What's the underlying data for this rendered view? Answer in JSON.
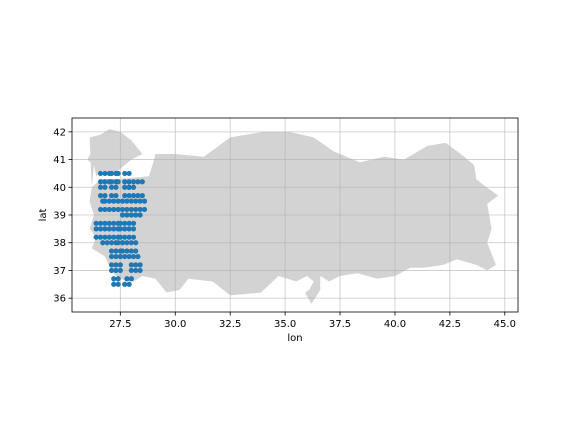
{
  "chart_data": {
    "type": "scatter",
    "title": "",
    "xlabel": "lon",
    "ylabel": "lat",
    "xlim": [
      25.3,
      45.6
    ],
    "ylim": [
      35.5,
      42.5
    ],
    "xticks": [
      27.5,
      30.0,
      32.5,
      35.0,
      37.5,
      40.0,
      42.5,
      45.0
    ],
    "xtick_labels": [
      "27.5",
      "30.0",
      "32.5",
      "35.0",
      "37.5",
      "40.0",
      "42.5",
      "45.0"
    ],
    "yticks": [
      36,
      37,
      38,
      39,
      40,
      41,
      42
    ],
    "ytick_labels": [
      "36",
      "37",
      "38",
      "39",
      "40",
      "41",
      "42"
    ],
    "grid": true,
    "background_shape": "Turkey outline (land polygon)",
    "colors": {
      "land": "#d3d3d3",
      "points": "#1f77b4",
      "grid": "#b0b0b0",
      "frame": "#000000"
    },
    "land_outline": [
      [
        26.1,
        41.8
      ],
      [
        26.6,
        41.9
      ],
      [
        27.0,
        42.1
      ],
      [
        27.5,
        42.0
      ],
      [
        28.0,
        41.7
      ],
      [
        28.5,
        41.2
      ],
      [
        28.0,
        41.0
      ],
      [
        27.4,
        40.6
      ],
      [
        27.0,
        40.4
      ],
      [
        26.7,
        40.6
      ],
      [
        26.4,
        40.4
      ],
      [
        26.3,
        40.8
      ],
      [
        26.0,
        41.0
      ],
      [
        26.4,
        41.6
      ],
      [
        26.2,
        40.0
      ],
      [
        26.1,
        39.5
      ],
      [
        26.3,
        39.0
      ],
      [
        26.1,
        38.5
      ],
      [
        26.4,
        38.2
      ],
      [
        26.2,
        37.8
      ],
      [
        26.8,
        37.5
      ],
      [
        27.1,
        37.0
      ],
      [
        27.4,
        36.7
      ],
      [
        28.1,
        36.6
      ],
      [
        28.5,
        36.8
      ],
      [
        29.1,
        36.7
      ],
      [
        29.6,
        36.2
      ],
      [
        30.2,
        36.3
      ],
      [
        30.6,
        36.7
      ],
      [
        31.7,
        36.6
      ],
      [
        32.5,
        36.1
      ],
      [
        33.9,
        36.2
      ],
      [
        34.7,
        36.8
      ],
      [
        35.5,
        36.6
      ],
      [
        36.0,
        36.8
      ],
      [
        36.3,
        36.6
      ],
      [
        36.1,
        36.3
      ],
      [
        35.9,
        36.2
      ],
      [
        36.2,
        35.8
      ],
      [
        36.6,
        36.3
      ],
      [
        36.6,
        36.8
      ],
      [
        37.0,
        36.6
      ],
      [
        37.5,
        36.8
      ],
      [
        38.3,
        36.9
      ],
      [
        39.2,
        36.7
      ],
      [
        40.0,
        36.8
      ],
      [
        40.7,
        37.1
      ],
      [
        41.3,
        37.1
      ],
      [
        42.2,
        37.2
      ],
      [
        42.8,
        37.4
      ],
      [
        43.7,
        37.2
      ],
      [
        44.2,
        37.0
      ],
      [
        44.6,
        37.2
      ],
      [
        44.2,
        38.0
      ],
      [
        44.4,
        38.5
      ],
      [
        44.2,
        39.4
      ],
      [
        44.7,
        39.7
      ],
      [
        44.0,
        40.1
      ],
      [
        43.7,
        40.3
      ],
      [
        43.6,
        40.8
      ],
      [
        43.0,
        41.2
      ],
      [
        42.3,
        41.6
      ],
      [
        41.5,
        41.5
      ],
      [
        40.4,
        41.0
      ],
      [
        39.5,
        41.1
      ],
      [
        38.4,
        40.9
      ],
      [
        37.2,
        41.3
      ],
      [
        36.3,
        41.8
      ],
      [
        35.2,
        42.0
      ],
      [
        34.0,
        42.0
      ],
      [
        32.5,
        41.8
      ],
      [
        31.3,
        41.1
      ],
      [
        30.0,
        41.2
      ],
      [
        29.1,
        41.2
      ],
      [
        29.0,
        40.9
      ],
      [
        28.8,
        40.4
      ],
      [
        27.4,
        40.3
      ],
      [
        26.6,
        40.3
      ],
      [
        26.2,
        40.0
      ]
    ],
    "series": [
      {
        "x": [
          26.6,
          26.8,
          26.6,
          26.8,
          26.6,
          26.8,
          26.6,
          26.8,
          27.0,
          27.1,
          27.3,
          27.4,
          27.0,
          27.1,
          27.3,
          27.4,
          27.1,
          27.3,
          27.1,
          27.3,
          26.7,
          26.8,
          27.0,
          27.2,
          27.4,
          26.6,
          26.8,
          27.0,
          27.2,
          27.4,
          26.4,
          26.6,
          26.8,
          27.0,
          27.2,
          27.4,
          26.4,
          26.6,
          26.8,
          27.0,
          27.2,
          27.4,
          26.4,
          26.6,
          26.8,
          27.0,
          27.2,
          27.4,
          26.7,
          26.9,
          27.1,
          27.3,
          27.1,
          27.3,
          27.5,
          27.1,
          27.3,
          27.5,
          27.1,
          27.3,
          27.5,
          27.1,
          27.3,
          27.5,
          27.2,
          27.4,
          27.2,
          27.4,
          27.4,
          27.6,
          27.7,
          27.9,
          27.7,
          27.9,
          27.7,
          27.9,
          28.1,
          28.3,
          28.5,
          27.7,
          27.9,
          28.1,
          28.3,
          28.5,
          27.6,
          27.8,
          28.0,
          28.2,
          28.4,
          28.6,
          27.6,
          27.8,
          28.0,
          28.2,
          28.4,
          28.6,
          27.6,
          27.8,
          28.0,
          28.2,
          28.4,
          27.5,
          27.7,
          27.9,
          28.1,
          27.5,
          27.7,
          27.9,
          28.1,
          27.5,
          27.7,
          27.9,
          28.1,
          27.6,
          27.8,
          28.0,
          28.2,
          27.6,
          27.8,
          28.0,
          28.2,
          27.7,
          27.9,
          28.1,
          28.3,
          28.0,
          28.2,
          28.4,
          28.0,
          28.2,
          28.4,
          27.8,
          28.0,
          27.7,
          27.9,
          27.9,
          28.1
        ],
        "y": [
          40.5,
          40.5,
          40.2,
          40.2,
          40.0,
          40.0,
          39.7,
          39.7,
          40.5,
          40.5,
          40.5,
          40.5,
          40.2,
          40.2,
          40.2,
          40.2,
          40.0,
          40.0,
          39.7,
          39.7,
          39.5,
          39.5,
          39.5,
          39.5,
          39.5,
          39.2,
          39.2,
          39.2,
          39.2,
          39.2,
          38.7,
          38.7,
          38.7,
          38.7,
          38.7,
          38.7,
          38.5,
          38.5,
          38.5,
          38.5,
          38.5,
          38.5,
          38.2,
          38.2,
          38.2,
          38.2,
          38.2,
          38.2,
          38.0,
          38.0,
          38.0,
          38.0,
          37.7,
          37.7,
          37.7,
          37.5,
          37.5,
          37.5,
          37.2,
          37.2,
          37.2,
          37.0,
          37.0,
          37.0,
          36.7,
          36.7,
          36.5,
          36.5,
          38.0,
          38.0,
          40.5,
          40.5,
          40.2,
          40.2,
          40.0,
          40.0,
          40.2,
          40.2,
          40.2,
          39.7,
          39.7,
          39.7,
          39.7,
          39.7,
          39.5,
          39.5,
          39.5,
          39.5,
          39.5,
          39.5,
          39.2,
          39.2,
          39.2,
          39.2,
          39.2,
          39.2,
          39.0,
          39.0,
          39.0,
          39.0,
          39.0,
          38.7,
          38.7,
          38.7,
          38.7,
          38.5,
          38.5,
          38.5,
          38.5,
          38.2,
          38.2,
          38.2,
          38.2,
          38.0,
          38.0,
          38.0,
          38.0,
          37.7,
          37.7,
          37.7,
          37.7,
          37.5,
          37.5,
          37.5,
          37.5,
          37.2,
          37.2,
          37.2,
          37.0,
          37.0,
          37.0,
          36.7,
          36.7,
          36.5,
          36.5,
          40.0,
          40.0
        ]
      }
    ]
  }
}
